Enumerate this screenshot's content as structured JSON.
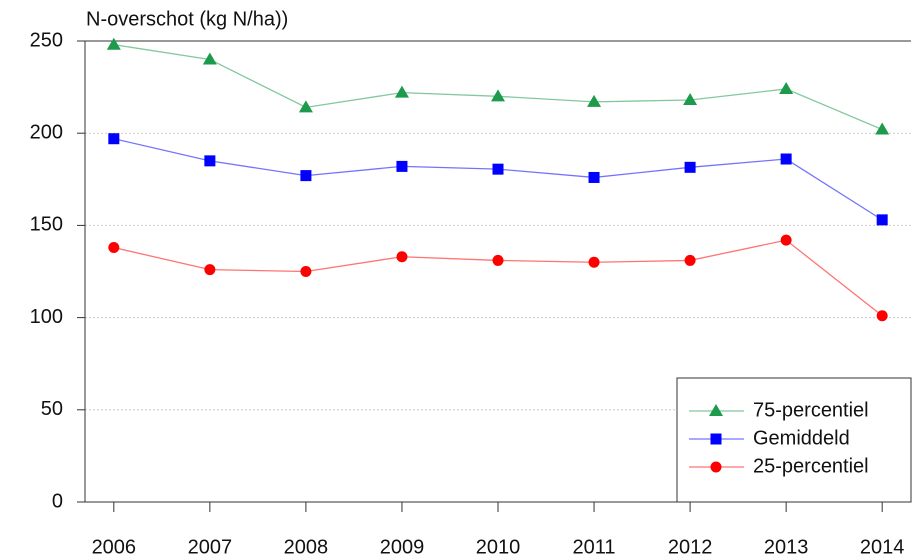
{
  "chart_data": {
    "type": "line",
    "y_label": "N-overschot (kg N/ha))",
    "x": [
      2006,
      2007,
      2008,
      2009,
      2010,
      2011,
      2012,
      2013,
      2014
    ],
    "xlim": [
      2005.7,
      2014.3
    ],
    "xticks": [
      2006,
      2007,
      2008,
      2009,
      2010,
      2011,
      2012,
      2013,
      2014
    ],
    "ylim": [
      0,
      250
    ],
    "yticks": [
      0,
      50,
      100,
      150,
      200,
      250
    ],
    "grid": true,
    "legend": "lower right",
    "series": [
      {
        "name": "75-percentiel",
        "color": "#1e9a4c",
        "marker": "triangle",
        "values": [
          248,
          240,
          214,
          222,
          220,
          217,
          218,
          224,
          202
        ]
      },
      {
        "name": "Gemiddeld",
        "color": "#0000ff",
        "marker": "square",
        "values": [
          197,
          185,
          177,
          182,
          180.5,
          176,
          181.5,
          186,
          153
        ]
      },
      {
        "name": "25-percentiel",
        "color": "#ff0000",
        "marker": "circle",
        "values": [
          138,
          126,
          125,
          133,
          131,
          130,
          131,
          142,
          101
        ]
      }
    ]
  }
}
